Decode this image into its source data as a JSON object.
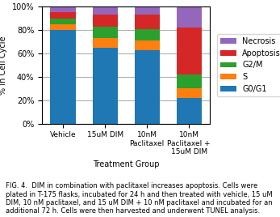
{
  "chart_data": {
    "type": "bar",
    "stacked": true,
    "categories": [
      "Vehicle",
      "15uM DIM",
      "10nM\nPaclitaxel",
      "10nM\nPaclitaxel +\n15uM DIM"
    ],
    "series": [
      {
        "name": "G0/G1",
        "values": [
          80,
          65,
          63,
          22
        ]
      },
      {
        "name": "S",
        "values": [
          5,
          8,
          8,
          8
        ]
      },
      {
        "name": "G2/M",
        "values": [
          5,
          10,
          10,
          12
        ]
      },
      {
        "name": "Apoptosis",
        "values": [
          5,
          10,
          12,
          40
        ]
      },
      {
        "name": "Necrosis",
        "values": [
          5,
          7,
          7,
          18
        ]
      }
    ],
    "xlabel": "Treatment Group",
    "ylabel": "% In Cell Cycle",
    "ylim": [
      0,
      100
    ],
    "yticks": [
      {
        "value": 0,
        "label": "0%"
      },
      {
        "value": 20,
        "label": "20%"
      },
      {
        "value": 40,
        "label": "40%"
      },
      {
        "value": 60,
        "label": "60%"
      },
      {
        "value": 80,
        "label": "80%"
      },
      {
        "value": 100,
        "label": "100%"
      }
    ],
    "grid": true,
    "legend": "right",
    "annotations": [
      "FIG. 4.  DIM in combination with paclitaxel increases apoptosis. Cells were plated in T-175 flasks, incubated for 24 h and then treated with vehicle, 15 uM DIM, 10 nM paclitaxel, and 15 uM DIM + 10 nM paclitaxel and incubated for an additional 72 h. Cells were then harvested and underwent TUNEL analysis."
    ]
  }
}
